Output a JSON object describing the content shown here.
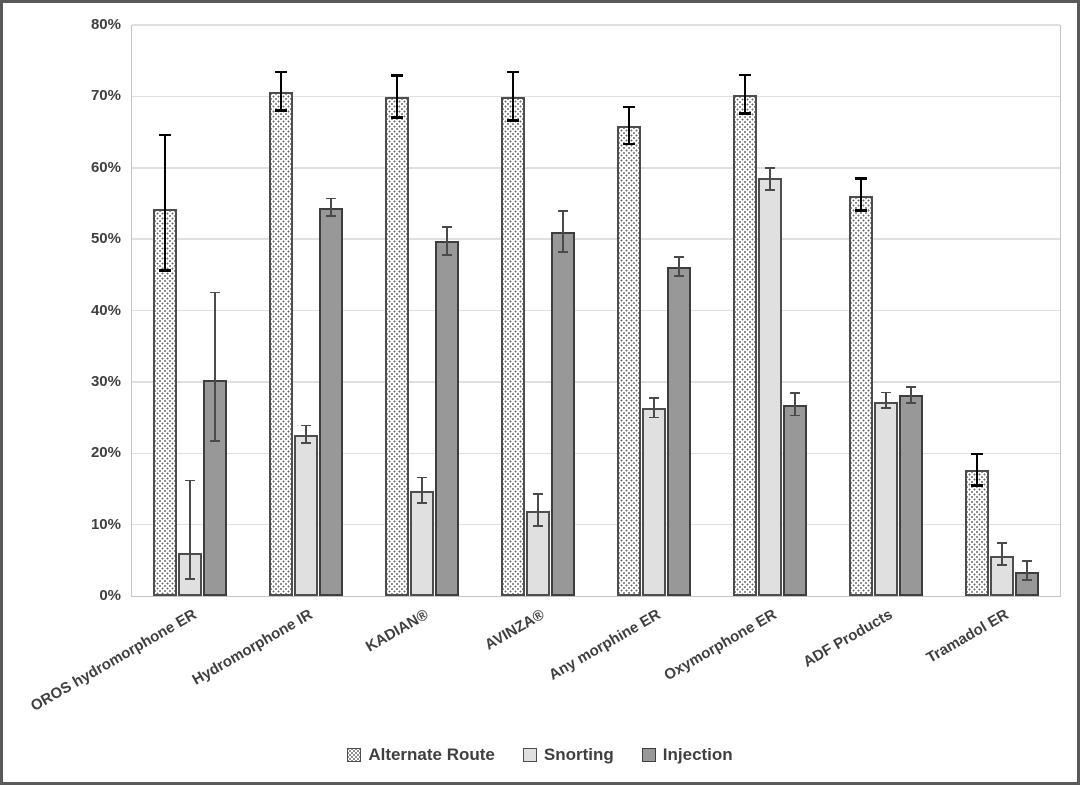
{
  "figure": {
    "background": "#ffffff",
    "frame_border_color": "#5a5a5a"
  },
  "chart_data": {
    "type": "bar",
    "title": "",
    "xlabel": "",
    "ylabel": "",
    "ylim": [
      0,
      80
    ],
    "ytick_step": 10,
    "ytick_labels": [
      "0%",
      "10%",
      "20%",
      "30%",
      "40%",
      "50%",
      "60%",
      "70%",
      "80%"
    ],
    "grid": true,
    "legend_position": "bottom",
    "categories": [
      "OROS hydromorphone ER",
      "Hydromorphone IR",
      "KADIAN®",
      "AVINZA®",
      "Any morphine ER",
      "Oxymorphone ER",
      "ADF Products",
      "Tramadol ER"
    ],
    "series": [
      {
        "name": "Alternate Route",
        "style": "dotted",
        "error_style": "primary",
        "values": [
          54.2,
          70.6,
          69.9,
          69.9,
          65.8,
          70.2,
          56.0,
          17.6
        ],
        "err_low": [
          45.6,
          68.0,
          67.0,
          66.6,
          63.3,
          67.6,
          54.0,
          15.5
        ],
        "err_high": [
          64.6,
          73.4,
          72.9,
          73.4,
          68.5,
          73.0,
          58.5,
          19.9
        ]
      },
      {
        "name": "Snorting",
        "style": "light",
        "error_style": "secondary",
        "values": [
          6.0,
          22.6,
          14.7,
          11.9,
          26.3,
          58.5,
          27.2,
          5.6
        ],
        "err_low": [
          2.4,
          21.4,
          13.0,
          9.8,
          25.0,
          56.9,
          26.3,
          4.3
        ],
        "err_high": [
          16.2,
          23.9,
          16.6,
          14.3,
          27.7,
          60.0,
          28.5,
          7.4
        ]
      },
      {
        "name": "Injection",
        "style": "dark",
        "error_style": "secondary",
        "values": [
          30.3,
          54.3,
          49.7,
          51.0,
          46.1,
          26.7,
          28.1,
          3.4
        ],
        "err_low": [
          21.7,
          53.2,
          47.8,
          48.2,
          44.8,
          25.3,
          27.0,
          2.2
        ],
        "err_high": [
          42.5,
          55.7,
          51.7,
          53.9,
          47.5,
          28.4,
          29.3,
          4.9
        ]
      }
    ],
    "colors": {
      "dotted_fill": "#ffffff",
      "dotted_dot": "#6e6e6e",
      "light_fill": "#e0e0e0",
      "dark_fill": "#989898",
      "bar_border": "#4d4d4d",
      "dark_bar_border": "#3e3e3e",
      "grid": "#e0e0e0",
      "axis": "#c4c4c4",
      "text": "#3f3f3f",
      "error_primary": "#000000",
      "error_secondary": "#4a4a4a"
    }
  }
}
